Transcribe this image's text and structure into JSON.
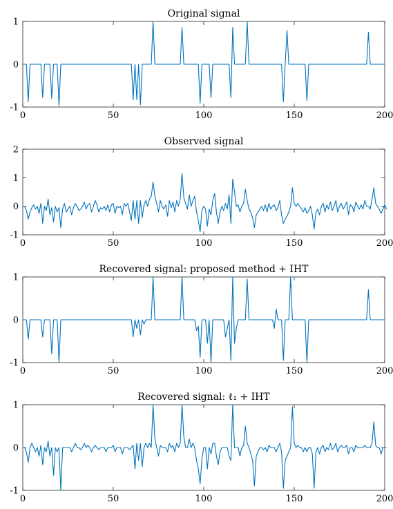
{
  "style": {
    "line_color": "#0072BD",
    "axis_color": "#262626",
    "background": "#ffffff"
  },
  "chart_data": [
    {
      "type": "line",
      "title": "Original signal",
      "xlim": [
        0,
        200
      ],
      "ylim": [
        -1,
        1
      ],
      "xticks": [
        0,
        50,
        100,
        150,
        200
      ],
      "yticks": [
        -1,
        0,
        1
      ],
      "xtick_labels": [
        "0",
        "50",
        "100",
        "150",
        "200"
      ],
      "ytick_labels": [
        "-1",
        "0",
        "1"
      ],
      "grid": false,
      "series": [
        {
          "color": "#0072BD",
          "points": [
            [
              0,
              0
            ],
            [
              2,
              0
            ],
            [
              3,
              -0.88
            ],
            [
              4,
              0
            ],
            [
              10,
              0
            ],
            [
              11,
              -0.78
            ],
            [
              12,
              0
            ],
            [
              15,
              0
            ],
            [
              16,
              -0.8
            ],
            [
              17,
              0
            ],
            [
              19,
              0
            ],
            [
              20,
              -0.97
            ],
            [
              21,
              0
            ],
            [
              60,
              0
            ],
            [
              61,
              -0.83
            ],
            [
              62,
              0
            ],
            [
              63,
              -0.83
            ],
            [
              64,
              0
            ],
            [
              65,
              -0.95
            ],
            [
              66,
              0
            ],
            [
              71,
              0
            ],
            [
              72,
              1.0
            ],
            [
              73,
              0
            ],
            [
              87,
              0
            ],
            [
              88,
              0.86
            ],
            [
              89,
              0
            ],
            [
              97,
              0
            ],
            [
              98,
              -0.91
            ],
            [
              99,
              0
            ],
            [
              103,
              0
            ],
            [
              104,
              -0.78
            ],
            [
              105,
              0
            ],
            [
              114,
              0
            ],
            [
              115,
              -0.78
            ],
            [
              116,
              0.86
            ],
            [
              117,
              0
            ],
            [
              123,
              0
            ],
            [
              124,
              1.0
            ],
            [
              125,
              0
            ],
            [
              143,
              0
            ],
            [
              144,
              -0.88
            ],
            [
              145,
              0
            ],
            [
              146,
              0.79
            ],
            [
              147,
              0
            ],
            [
              156,
              0
            ],
            [
              157,
              -0.85
            ],
            [
              158,
              0
            ],
            [
              190,
              0
            ],
            [
              191,
              0.75
            ],
            [
              192,
              0
            ],
            [
              200,
              0
            ]
          ]
        }
      ]
    },
    {
      "type": "line",
      "title": "Observed signal",
      "xlim": [
        0,
        200
      ],
      "ylim": [
        -1,
        2
      ],
      "xticks": [
        0,
        50,
        100,
        150,
        200
      ],
      "yticks": [
        -1,
        0,
        1,
        2
      ],
      "xtick_labels": [
        "0",
        "50",
        "100",
        "150",
        "200"
      ],
      "ytick_labels": [
        "-1",
        "0",
        "1",
        "2"
      ],
      "grid": false,
      "series": [
        {
          "color": "#0072BD",
          "values": [
            0.0,
            0.0,
            -0.15,
            -0.45,
            -0.2,
            -0.05,
            0.05,
            -0.1,
            0.0,
            -0.25,
            0.1,
            -0.6,
            0.0,
            -0.15,
            0.25,
            -0.3,
            -0.05,
            -0.55,
            0.0,
            -0.2,
            -0.05,
            -0.75,
            -0.1,
            0.1,
            -0.2,
            -0.1,
            0.0,
            -0.3,
            -0.05,
            0.1,
            0.0,
            -0.15,
            -0.1,
            0.0,
            0.15,
            -0.1,
            0.05,
            0.1,
            -0.2,
            0.0,
            0.2,
            0.05,
            -0.2,
            -0.05,
            -0.1,
            0.0,
            -0.15,
            0.05,
            -0.2,
            0.05,
            0.1,
            -0.25,
            0.0,
            -0.05,
            0.0,
            -0.3,
            0.1,
            0.0,
            0.1,
            -0.2,
            -0.5,
            0.2,
            -0.45,
            0.2,
            -0.6,
            0.2,
            -0.4,
            0.05,
            0.2,
            0.0,
            0.25,
            0.35,
            0.85,
            0.35,
            0.1,
            -0.2,
            0.2,
            0.0,
            -0.1,
            0.05,
            -0.35,
            0.2,
            -0.05,
            0.15,
            -0.2,
            0.2,
            0.0,
            0.25,
            1.15,
            0.3,
            0.1,
            -0.1,
            0.4,
            0.0,
            0.2,
            0.35,
            -0.2,
            -0.5,
            -0.9,
            -0.15,
            0.0,
            -0.1,
            -0.7,
            -0.1,
            -0.3,
            0.2,
            0.45,
            -0.2,
            -0.6,
            -0.2,
            0.0,
            -0.15,
            0.1,
            -0.1,
            0.4,
            -0.6,
            0.95,
            0.5,
            0.0,
            0.05,
            -0.2,
            0.0,
            0.1,
            0.6,
            0.2,
            -0.1,
            -0.2,
            -0.4,
            -0.75,
            -0.3,
            -0.2,
            -0.1,
            0.0,
            -0.15,
            0.05,
            -0.2,
            0.1,
            -0.1,
            0.0,
            0.05,
            -0.15,
            -0.05,
            0.2,
            -0.3,
            -0.6,
            -0.45,
            -0.35,
            -0.2,
            0.0,
            0.65,
            0.1,
            0.0,
            0.1,
            0.0,
            -0.1,
            -0.2,
            -0.05,
            -0.25,
            -0.15,
            0.0,
            -0.3,
            -0.8,
            -0.2,
            -0.1,
            -0.3,
            0.0,
            0.1,
            -0.2,
            0.05,
            -0.1,
            0.15,
            -0.15,
            0.0,
            0.2,
            -0.2,
            0.0,
            0.1,
            -0.1,
            0.0,
            0.15,
            -0.3,
            0.05,
            0.0,
            -0.2,
            0.15,
            0.0,
            -0.1,
            0.05,
            -0.1,
            0.2,
            0.0,
            0.0,
            -0.1,
            0.25,
            0.65,
            0.1,
            0.0,
            -0.1,
            -0.25,
            -0.1,
            0.05,
            -0.1
          ]
        }
      ]
    },
    {
      "type": "line",
      "title": "Recovered signal: proposed method + IHT",
      "xlim": [
        0,
        200
      ],
      "ylim": [
        -1,
        1
      ],
      "xticks": [
        0,
        50,
        100,
        150,
        200
      ],
      "yticks": [
        -1,
        0,
        1
      ],
      "xtick_labels": [
        "0",
        "50",
        "100",
        "150",
        "200"
      ],
      "ytick_labels": [
        "-1",
        "0",
        "1"
      ],
      "grid": false,
      "series": [
        {
          "color": "#0072BD",
          "points": [
            [
              0,
              0
            ],
            [
              2,
              0
            ],
            [
              3,
              -0.45
            ],
            [
              4,
              0
            ],
            [
              10,
              0
            ],
            [
              11,
              -0.4
            ],
            [
              12,
              0
            ],
            [
              15,
              0
            ],
            [
              16,
              -0.8
            ],
            [
              17,
              0
            ],
            [
              19,
              0
            ],
            [
              20,
              -1.0
            ],
            [
              21,
              0
            ],
            [
              60,
              0
            ],
            [
              61,
              -0.4
            ],
            [
              62,
              0
            ],
            [
              63,
              -0.2
            ],
            [
              64,
              0
            ],
            [
              65,
              -0.35
            ],
            [
              66,
              0
            ],
            [
              67,
              -0.1
            ],
            [
              68,
              0
            ],
            [
              71,
              0
            ],
            [
              72,
              1.0
            ],
            [
              73,
              0
            ],
            [
              87,
              0
            ],
            [
              88,
              1.0
            ],
            [
              89,
              0
            ],
            [
              95,
              0
            ],
            [
              96,
              -0.25
            ],
            [
              97,
              -0.15
            ],
            [
              98,
              -0.88
            ],
            [
              99,
              0
            ],
            [
              101,
              0
            ],
            [
              102,
              -0.55
            ],
            [
              103,
              0.0
            ],
            [
              104,
              -1.0
            ],
            [
              105,
              0
            ],
            [
              111,
              0
            ],
            [
              112,
              -0.4
            ],
            [
              113,
              -0.2
            ],
            [
              114,
              0.0
            ],
            [
              115,
              -0.95
            ],
            [
              116,
              1.0
            ],
            [
              117,
              -0.55
            ],
            [
              118,
              -0.2
            ],
            [
              119,
              0
            ],
            [
              123,
              0
            ],
            [
              124,
              0.95
            ],
            [
              125,
              0
            ],
            [
              138,
              0
            ],
            [
              139,
              -0.2
            ],
            [
              140,
              0.25
            ],
            [
              141,
              0
            ],
            [
              143,
              0
            ],
            [
              144,
              -0.95
            ],
            [
              145,
              0
            ],
            [
              147,
              0
            ],
            [
              148,
              1.0
            ],
            [
              149,
              0
            ],
            [
              156,
              0
            ],
            [
              157,
              -1.0
            ],
            [
              158,
              0
            ],
            [
              190,
              0
            ],
            [
              191,
              0.7
            ],
            [
              192,
              0
            ],
            [
              200,
              0
            ]
          ]
        }
      ]
    },
    {
      "type": "line",
      "title": "Recovered signal: ℓ₁ + IHT",
      "xlim": [
        0,
        200
      ],
      "ylim": [
        -1,
        1
      ],
      "xticks": [
        0,
        50,
        100,
        150,
        200
      ],
      "yticks": [
        -1,
        0,
        1
      ],
      "xtick_labels": [
        "0",
        "50",
        "100",
        "150",
        "200"
      ],
      "ytick_labels": [
        "-1",
        "0",
        "1"
      ],
      "grid": false,
      "series": [
        {
          "color": "#0072BD",
          "values": [
            0,
            0.0,
            -0.1,
            -0.35,
            0.0,
            0.1,
            0.0,
            -0.1,
            0.0,
            -0.2,
            0.05,
            -0.4,
            0.0,
            -0.1,
            0.15,
            -0.2,
            0.0,
            -0.65,
            0.0,
            -0.1,
            0.0,
            -1.0,
            0.0,
            0.0,
            0.0,
            0.0,
            0.0,
            -0.1,
            0.0,
            0.1,
            0.0,
            0.0,
            -0.05,
            0.0,
            0.1,
            0.0,
            0.05,
            0.0,
            -0.1,
            0.0,
            0.05,
            0.0,
            -0.05,
            0.0,
            0.0,
            0.0,
            -0.1,
            0.0,
            0.0,
            0.0,
            0.05,
            -0.1,
            0.0,
            0.0,
            0.0,
            -0.15,
            0.0,
            0.0,
            0.0,
            -0.05,
            0.0,
            0.05,
            -0.5,
            0.1,
            -0.3,
            0.1,
            -0.45,
            0.0,
            0.1,
            0.0,
            0.1,
            0.0,
            1.0,
            0.2,
            0.0,
            -0.2,
            0.05,
            0.0,
            0.0,
            0.0,
            -0.1,
            0.1,
            0.0,
            0.05,
            -0.1,
            0.1,
            0.0,
            0.1,
            1.0,
            0.25,
            0.0,
            0.0,
            0.2,
            0.0,
            0.1,
            0.0,
            -0.3,
            -0.5,
            -0.85,
            -0.25,
            0.0,
            0.0,
            -0.5,
            0.0,
            -0.15,
            0.1,
            0.1,
            -0.2,
            -0.4,
            -0.1,
            0.0,
            0.0,
            0.0,
            0.0,
            -0.2,
            -0.3,
            1.0,
            0.0,
            0.0,
            0.0,
            -0.2,
            0.0,
            0.05,
            0.5,
            0.1,
            0.0,
            -0.15,
            -0.3,
            -0.9,
            -0.2,
            -0.1,
            0.0,
            0.0,
            -0.05,
            0.0,
            -0.1,
            0.05,
            0.0,
            0.0,
            0.0,
            -0.1,
            0.0,
            0.1,
            -0.1,
            -0.95,
            -0.3,
            -0.2,
            -0.1,
            0.0,
            0.95,
            0.1,
            0.0,
            0.05,
            0.0,
            0.0,
            -0.1,
            0.0,
            -0.1,
            0.0,
            0.0,
            -0.15,
            -0.95,
            -0.1,
            0.0,
            -0.15,
            0.0,
            0.05,
            -0.1,
            0.0,
            -0.05,
            0.1,
            -0.05,
            0.0,
            0.1,
            -0.1,
            0.0,
            0.05,
            0.0,
            0.0,
            0.05,
            -0.15,
            0.0,
            0.0,
            -0.1,
            0.05,
            0.0,
            0.0,
            0.0,
            0.0,
            0.05,
            0.0,
            0.0,
            0.0,
            0.1,
            0.6,
            0.05,
            0.0,
            0.0,
            -0.15,
            0.0,
            0.0,
            0.0
          ]
        }
      ]
    }
  ]
}
